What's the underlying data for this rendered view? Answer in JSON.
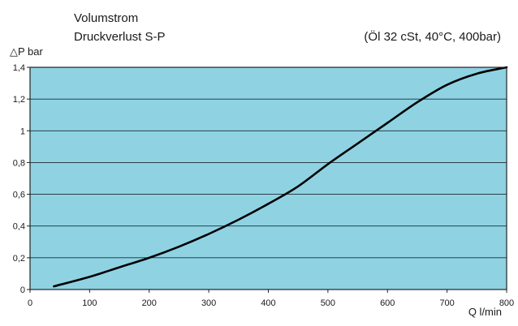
{
  "chart_data": {
    "type": "line",
    "title": "Volumstrom",
    "subtitle": "Druckverlust S-P",
    "conditions": "(Öl 32 cSt, 40°C, 400bar)",
    "xlabel": "Q l/min",
    "ylabel": "△P bar",
    "xlim": [
      0,
      800
    ],
    "ylim": [
      0,
      1.4
    ],
    "x_ticks": [
      "0",
      "100",
      "200",
      "300",
      "400",
      "500",
      "600",
      "700",
      "800"
    ],
    "y_ticks": [
      "0",
      "0,2",
      "0,4",
      "0,6",
      "0,8",
      "1",
      "1,2",
      "1,4"
    ],
    "grid": "horizontal",
    "plot_background": "#8fd3e3",
    "line_color": "#000000",
    "series": [
      {
        "x": [
          40,
          100,
          150,
          200,
          250,
          300,
          350,
          400,
          450,
          500,
          550,
          600,
          650,
          700,
          750,
          800
        ],
        "y": [
          0.02,
          0.08,
          0.14,
          0.2,
          0.27,
          0.35,
          0.44,
          0.54,
          0.65,
          0.79,
          0.92,
          1.05,
          1.18,
          1.29,
          1.36,
          1.4
        ]
      }
    ]
  }
}
